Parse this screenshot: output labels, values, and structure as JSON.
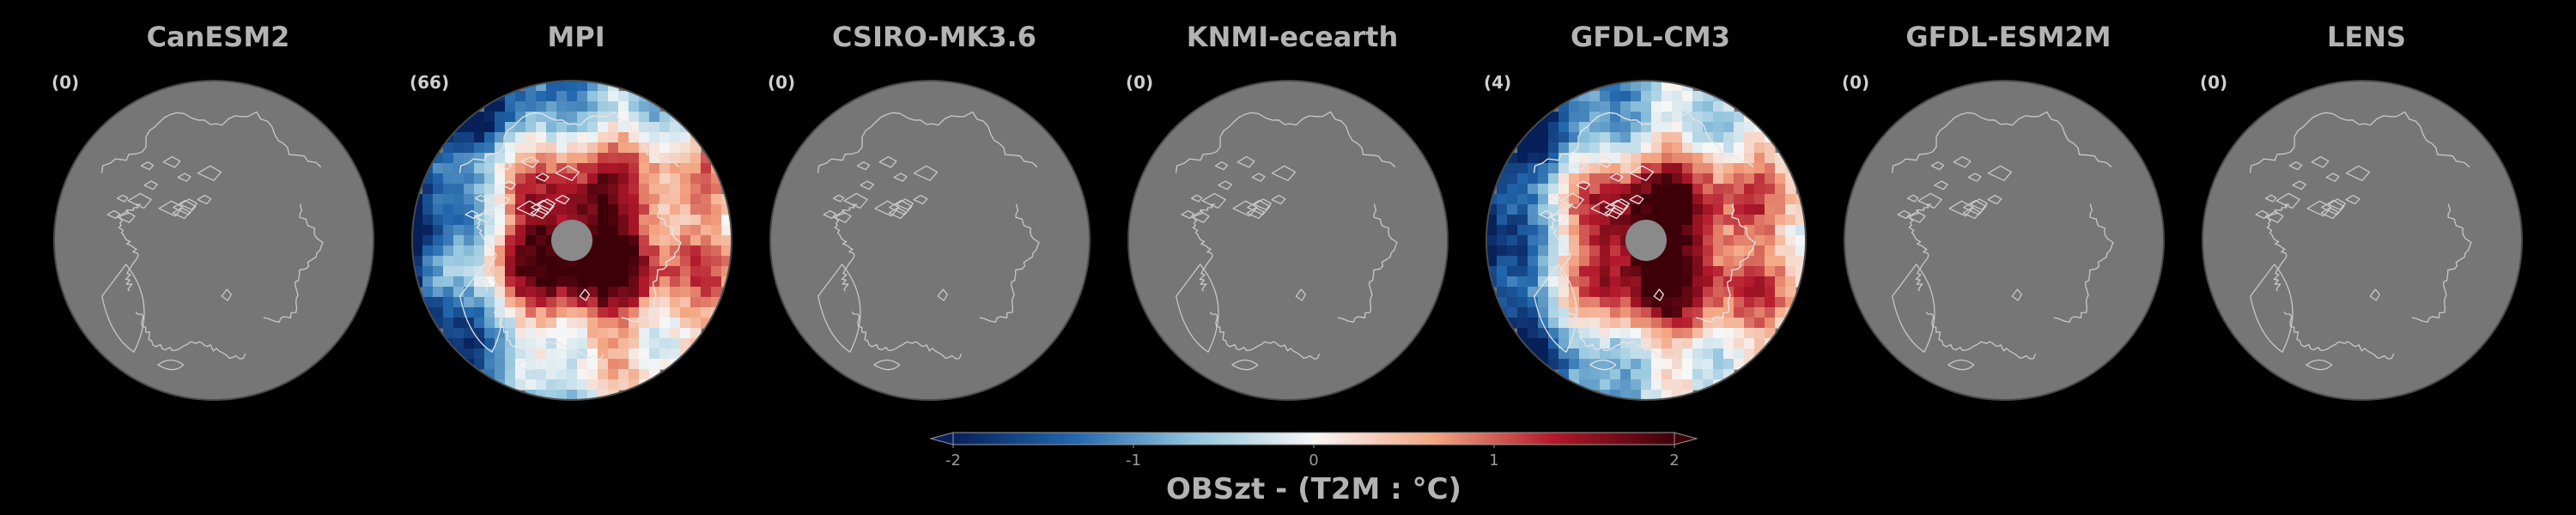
{
  "panels": [
    {
      "title": "CanESM2",
      "count": "(0)",
      "field": "none"
    },
    {
      "title": "MPI",
      "count": "(66)",
      "field": "anomaly"
    },
    {
      "title": "CSIRO-MK3.6",
      "count": "(0)",
      "field": "none"
    },
    {
      "title": "KNMI-ecearth",
      "count": "(0)",
      "field": "none"
    },
    {
      "title": "GFDL-CM3",
      "count": "(4)",
      "field": "anomaly"
    },
    {
      "title": "GFDL-ESM2M",
      "count": "(0)",
      "field": "none"
    },
    {
      "title": "LENS",
      "count": "(0)",
      "field": "none"
    }
  ],
  "colorbar": {
    "title": "OBSzt - (T2M : °C)",
    "ticks": [
      "-2",
      "-1",
      "0",
      "1",
      "2"
    ],
    "range": [
      -2,
      2
    ],
    "colors": [
      "#08205a",
      "#2166ac",
      "#92c5de",
      "#f7f7f7",
      "#f4a582",
      "#b2182b",
      "#3d0008"
    ]
  },
  "colors": {
    "land": "#767676",
    "coastline": "#c8c8c8",
    "background": "#000000",
    "text": "#b3b3b3"
  }
}
